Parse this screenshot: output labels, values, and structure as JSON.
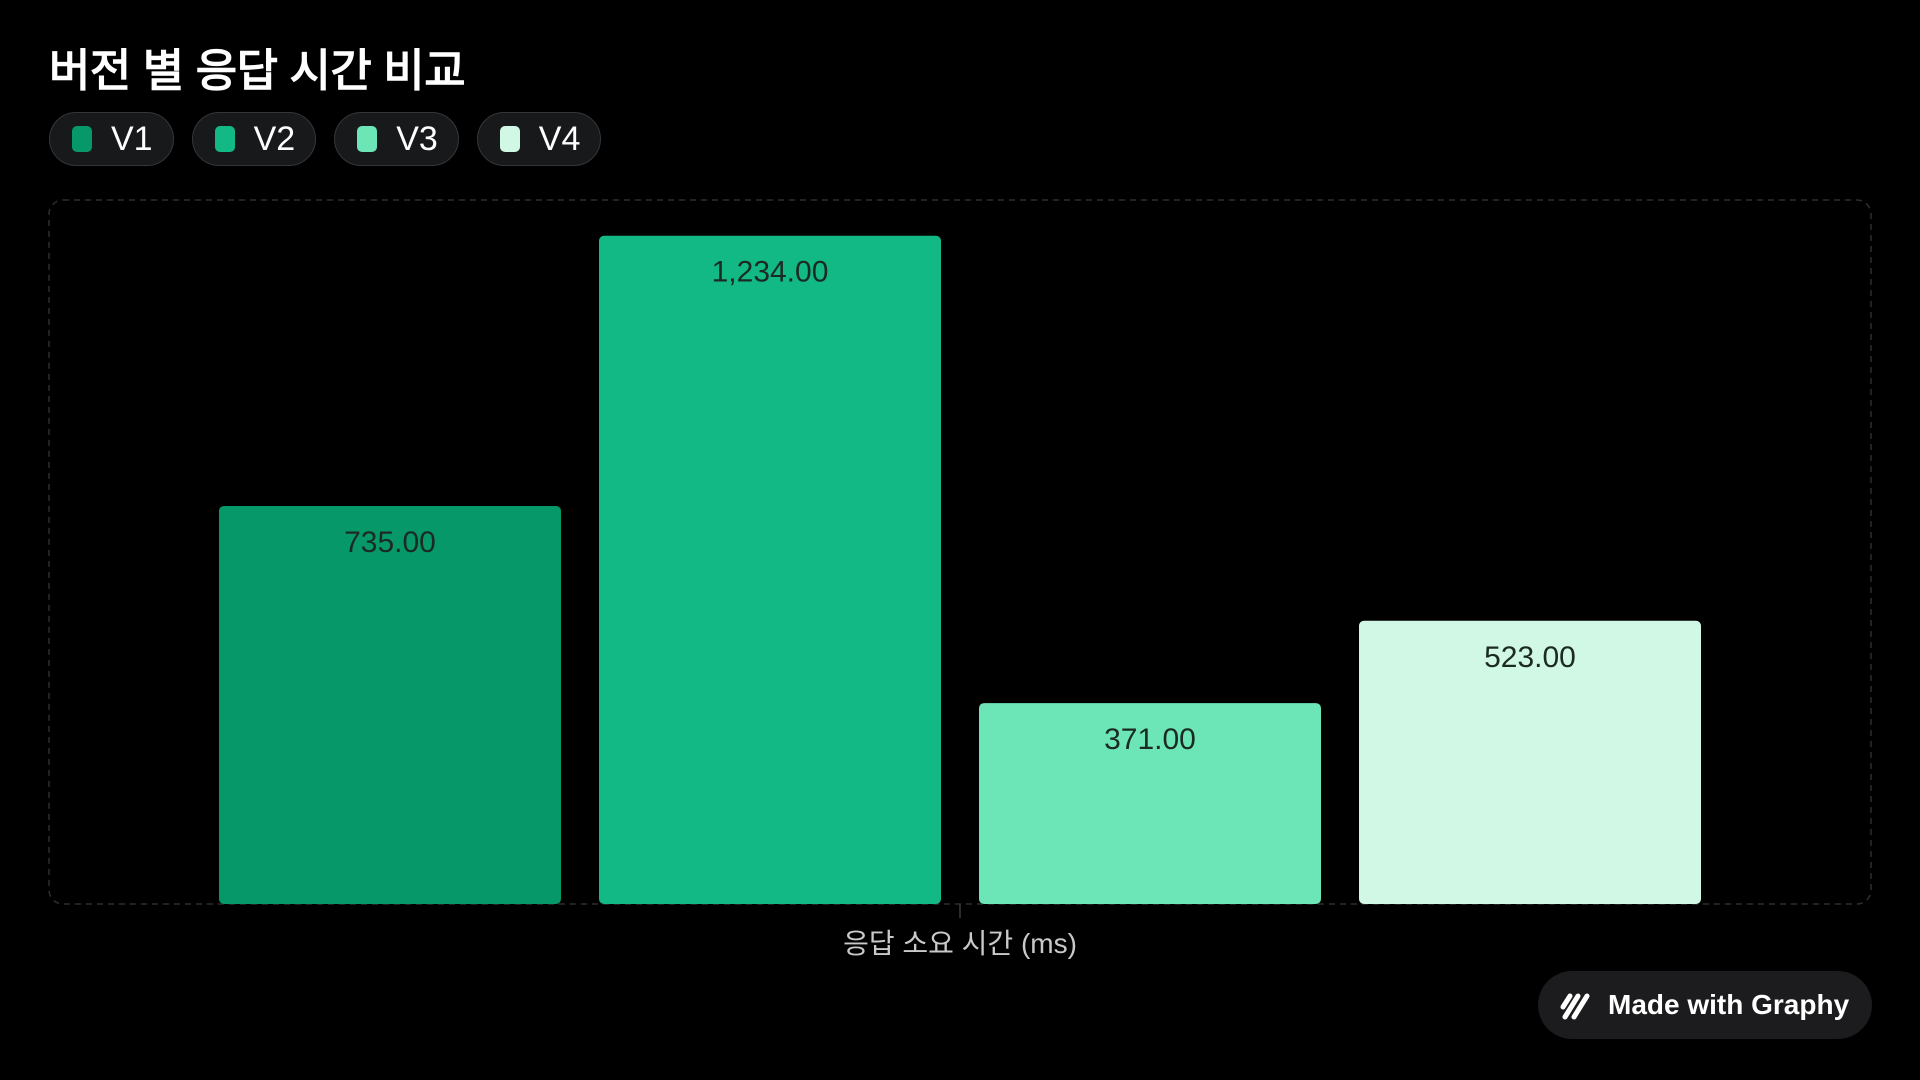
{
  "chart_data": {
    "type": "bar",
    "title": "버전 별 응답 시간 비교",
    "xlabel": "응답 소요 시간 (ms)",
    "ylabel": "",
    "ylim": [
      0,
      1300
    ],
    "grid": false,
    "legend_position": "top-left",
    "categories": [
      "V1",
      "V2",
      "V3",
      "V4"
    ],
    "values": [
      735.0,
      1234.0,
      371.0,
      523.0
    ],
    "value_labels": [
      "735.00",
      "1,234.00",
      "371.00",
      "523.00"
    ],
    "colors": [
      "#07986a",
      "#12b985",
      "#6ce5b7",
      "#d0f8e4"
    ]
  },
  "legend": [
    {
      "label": "V1",
      "color": "#07986a"
    },
    {
      "label": "V2",
      "color": "#12b985"
    },
    {
      "label": "V3",
      "color": "#6ce5b7"
    },
    {
      "label": "V4",
      "color": "#d0f8e4"
    }
  ],
  "badge": {
    "text": "Made with Graphy",
    "icon": "graphy-logo-icon"
  },
  "colors": {
    "background": "#000000",
    "value_label": "#1b2a22",
    "frame": "#2e2e30"
  }
}
